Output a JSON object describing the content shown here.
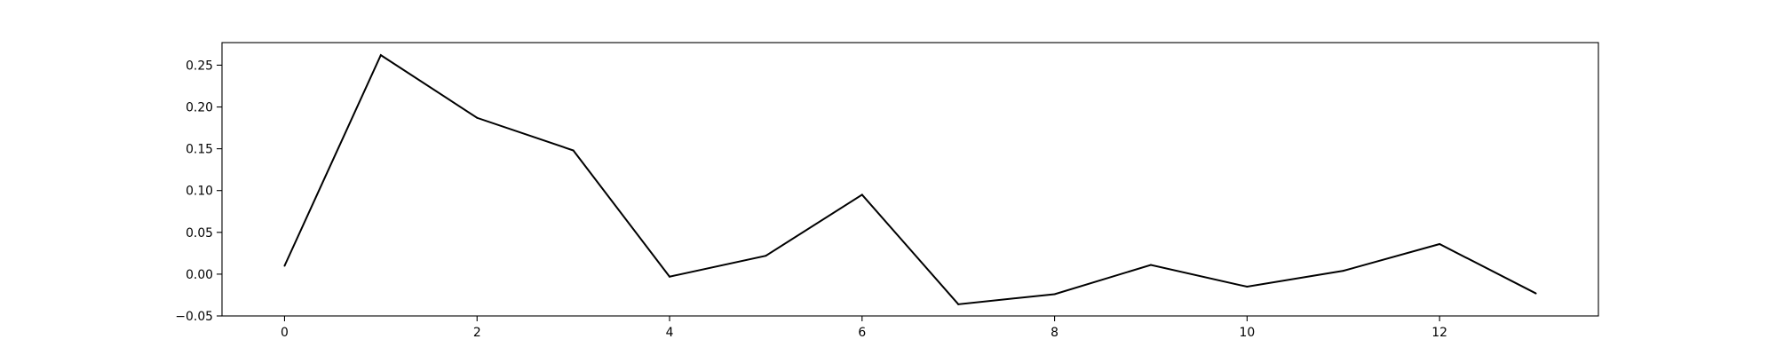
{
  "chart_data": {
    "type": "line",
    "title": "",
    "xlabel": "",
    "ylabel": "",
    "x": [
      0,
      1,
      2,
      3,
      4,
      5,
      6,
      7,
      8,
      9,
      10,
      11,
      12,
      13
    ],
    "series": [
      {
        "values": [
          0.01,
          0.262,
          0.187,
          0.148,
          -0.003,
          0.022,
          0.095,
          -0.036,
          -0.024,
          0.011,
          -0.015,
          0.004,
          0.036,
          -0.023
        ],
        "color": "#000000"
      }
    ],
    "xlim": [
      -0.65,
      13.65
    ],
    "ylim": [
      -0.05,
      0.277
    ],
    "xticks": [
      0,
      2,
      4,
      6,
      8,
      10,
      12
    ],
    "xtick_labels": [
      "0",
      "2",
      "4",
      "6",
      "8",
      "10",
      "12"
    ],
    "yticks": [
      -0.05,
      0.0,
      0.05,
      0.1,
      0.15,
      0.2,
      0.25
    ],
    "ytick_labels": [
      "−0.05",
      "0.00",
      "0.05",
      "0.10",
      "0.15",
      "0.20",
      "0.25"
    ],
    "grid": false,
    "legend": "none"
  }
}
